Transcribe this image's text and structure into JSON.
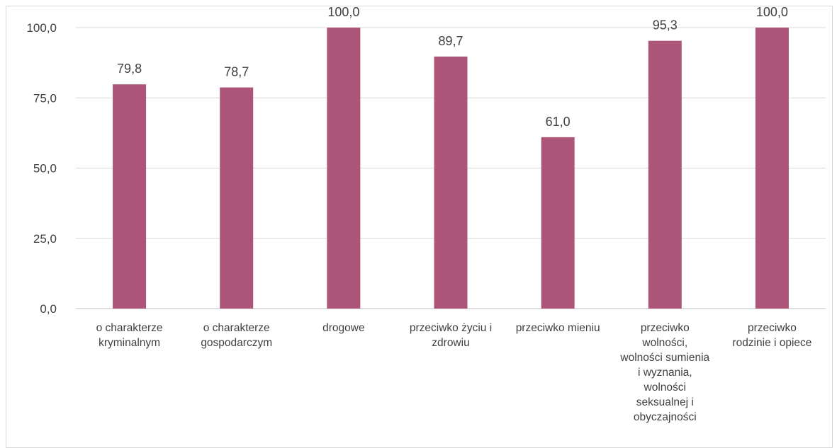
{
  "chart_data": {
    "type": "bar",
    "title": "",
    "xlabel": "",
    "ylabel": "",
    "ylim": [
      0,
      100
    ],
    "yticks": [
      "0,0",
      "25,0",
      "50,0",
      "75,0",
      "100,0"
    ],
    "ytick_values": [
      0,
      25,
      50,
      75,
      100
    ],
    "grid": true,
    "legend": "none",
    "bar_color": "#ad5479",
    "categories": [
      [
        "o charakterze",
        "kryminalnym"
      ],
      [
        "o charakterze",
        "gospodarczym"
      ],
      [
        "drogowe"
      ],
      [
        "przeciwko życiu i",
        "zdrowiu"
      ],
      [
        "przeciwko mieniu"
      ],
      [
        "przeciwko",
        "wolności,",
        "wolności sumienia",
        "i wyznania,",
        "wolności",
        "seksualnej i",
        "obyczajności"
      ],
      [
        "przeciwko",
        "rodzinie i opiece"
      ]
    ],
    "values": [
      79.8,
      78.7,
      100.0,
      89.7,
      61.0,
      95.3,
      100.0
    ],
    "data_labels": [
      "79,8",
      "78,7",
      "100,0",
      "89,7",
      "61,0",
      "95,3",
      "100,0"
    ]
  }
}
